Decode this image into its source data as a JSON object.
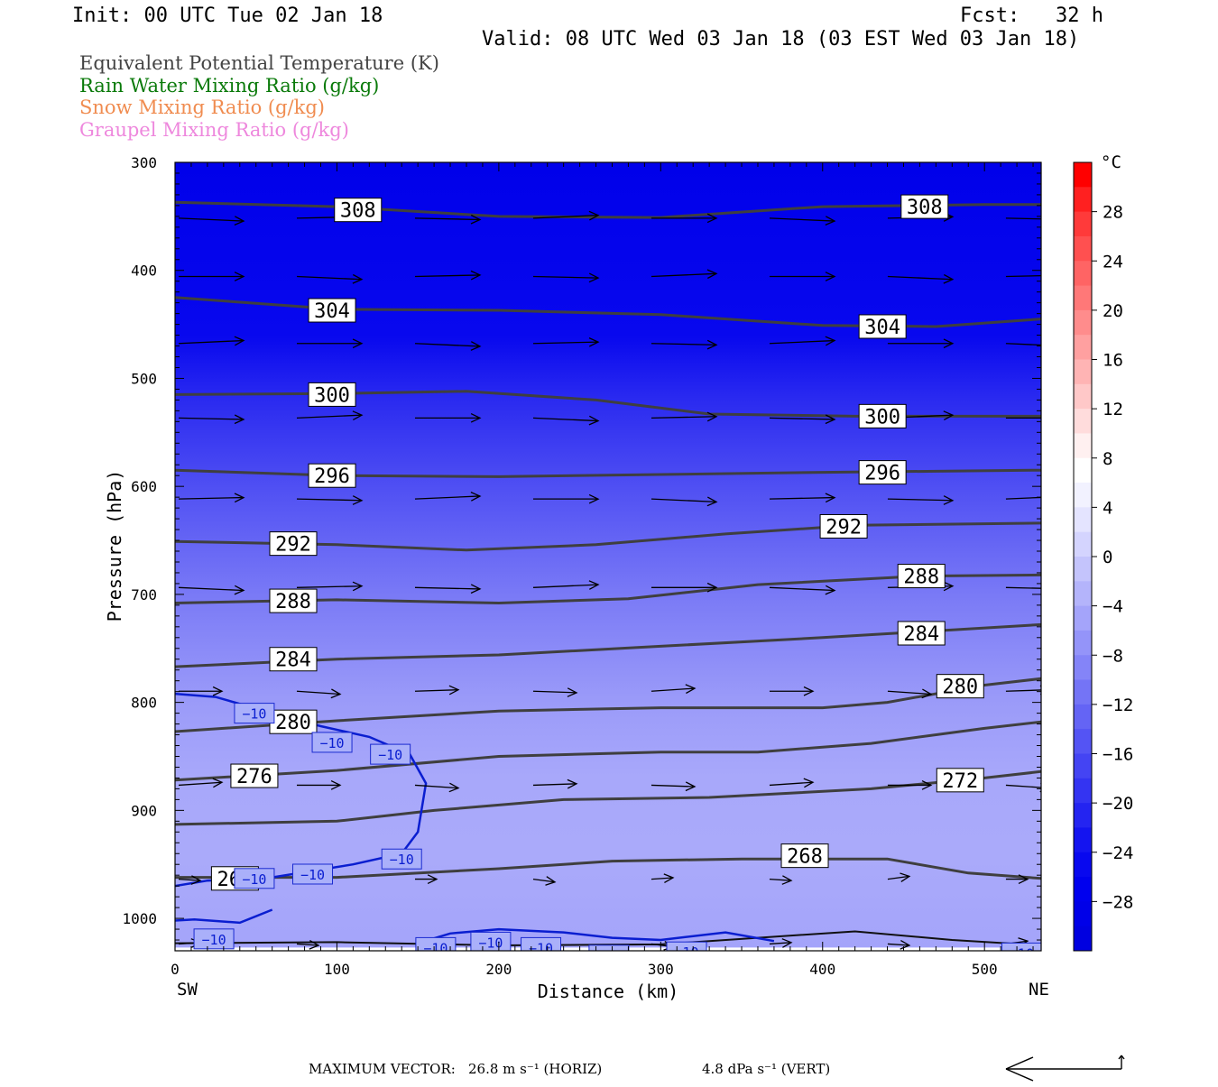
{
  "header": {
    "init": "Init: 00 UTC Tue 02 Jan 18",
    "fcst": "Fcst:   32 h",
    "valid": "Valid: 08 UTC Wed 03 Jan 18 (03 EST Wed 03 Jan 18)"
  },
  "legend": [
    {
      "label": "Equivalent Potential Temperature (K)",
      "color": "#444444"
    },
    {
      "label": "Rain Water Mixing Ratio (g/kg)",
      "color": "#0a7a0a"
    },
    {
      "label": "Snow Mixing Ratio (g/kg)",
      "color": "#f08c50"
    },
    {
      "label": "Graupel Mixing Ratio (g/kg)",
      "color": "#ee88dd"
    }
  ],
  "footer": {
    "max_vector_label": "MAXIMUM VECTOR:",
    "horiz": "26.8 m s⁻¹ (HORIZ)",
    "vert": "4.8 dPa s⁻¹ (VERT)"
  },
  "chart_data": {
    "type": "cross-section",
    "xlabel": "Distance (km)",
    "ylabel": "Pressure (hPa)",
    "xlim": [
      0,
      535
    ],
    "ylim": [
      300,
      1030
    ],
    "x_ticks": [
      0,
      100,
      200,
      300,
      400,
      500
    ],
    "y_ticks": [
      300,
      400,
      500,
      600,
      700,
      800,
      900,
      1000
    ],
    "x_end_labels": {
      "left": "SW",
      "right": "NE"
    },
    "colorbar": {
      "unit": "°C",
      "tick_labels": [
        "28",
        "24",
        "20",
        "16",
        "12",
        "8",
        "4",
        "0",
        "−4",
        "−8",
        "−12",
        "−16",
        "−20",
        "−24",
        "−28"
      ],
      "levels": [
        32,
        30,
        28,
        26,
        24,
        22,
        20,
        18,
        16,
        14,
        12,
        10,
        8,
        6,
        4,
        2,
        0,
        -2,
        -4,
        -6,
        -8,
        -10,
        -12,
        -14,
        -16,
        -18,
        -20,
        -22,
        -24,
        -26,
        -28,
        -30,
        -32
      ],
      "colors": [
        "#ff0000",
        "#ff2020",
        "#ff3a3a",
        "#ff5050",
        "#ff6464",
        "#ff7878",
        "#ff8c8c",
        "#ffa0a0",
        "#ffb4b4",
        "#ffc8c8",
        "#ffdcdc",
        "#fff0f0",
        "#ffffff",
        "#f2f2ff",
        "#e4e4ff",
        "#d4d4fe",
        "#c4c4fc",
        "#b4b4fb",
        "#a4a4fa",
        "#9494f9",
        "#8484f8",
        "#7474f6",
        "#6464f5",
        "#5454f4",
        "#4444f3",
        "#3434f2",
        "#2424f1",
        "#1414f0",
        "#0808ef",
        "#0000ee",
        "#0000e8",
        "#0000e0"
      ]
    },
    "theta_e_contours": [
      {
        "level": "308",
        "points": [
          [
            0,
            337
          ],
          [
            100,
            341
          ],
          [
            200,
            350
          ],
          [
            300,
            351
          ],
          [
            400,
            341
          ],
          [
            500,
            339
          ],
          [
            535,
            339
          ]
        ],
        "labels": [
          [
            113,
            344
          ],
          [
            463,
            341
          ]
        ]
      },
      {
        "level": "304",
        "points": [
          [
            0,
            425
          ],
          [
            100,
            436
          ],
          [
            200,
            437
          ],
          [
            300,
            441
          ],
          [
            400,
            451
          ],
          [
            470,
            452
          ],
          [
            535,
            445
          ]
        ],
        "labels": [
          [
            97,
            437
          ],
          [
            437,
            452
          ]
        ]
      },
      {
        "level": "300",
        "points": [
          [
            0,
            515
          ],
          [
            100,
            514
          ],
          [
            180,
            512
          ],
          [
            260,
            520
          ],
          [
            330,
            533
          ],
          [
            420,
            535
          ],
          [
            535,
            535
          ]
        ],
        "labels": [
          [
            97,
            515
          ],
          [
            437,
            535
          ]
        ]
      },
      {
        "level": "296",
        "points": [
          [
            0,
            585
          ],
          [
            100,
            590
          ],
          [
            200,
            591
          ],
          [
            300,
            589
          ],
          [
            400,
            587
          ],
          [
            535,
            585
          ]
        ],
        "labels": [
          [
            97,
            590
          ],
          [
            437,
            587
          ]
        ]
      },
      {
        "level": "292",
        "points": [
          [
            0,
            651
          ],
          [
            100,
            654
          ],
          [
            180,
            659
          ],
          [
            260,
            654
          ],
          [
            340,
            644
          ],
          [
            420,
            636
          ],
          [
            535,
            634
          ]
        ],
        "labels": [
          [
            73,
            653
          ],
          [
            413,
            637
          ]
        ]
      },
      {
        "level": "288",
        "points": [
          [
            0,
            708
          ],
          [
            100,
            705
          ],
          [
            200,
            708
          ],
          [
            280,
            704
          ],
          [
            360,
            691
          ],
          [
            460,
            683
          ],
          [
            535,
            682
          ]
        ],
        "labels": [
          [
            73,
            706
          ],
          [
            461,
            683
          ]
        ]
      },
      {
        "level": "284",
        "points": [
          [
            0,
            767
          ],
          [
            100,
            760
          ],
          [
            200,
            756
          ],
          [
            300,
            748
          ],
          [
            400,
            740
          ],
          [
            535,
            728
          ]
        ],
        "labels": [
          [
            73,
            760
          ],
          [
            461,
            736
          ]
        ]
      },
      {
        "level": "280",
        "points": [
          [
            0,
            827
          ],
          [
            100,
            817
          ],
          [
            200,
            808
          ],
          [
            300,
            805
          ],
          [
            400,
            805
          ],
          [
            440,
            800
          ],
          [
            500,
            784
          ],
          [
            535,
            778
          ]
        ],
        "labels": [
          [
            73,
            818
          ],
          [
            485,
            785
          ]
        ]
      },
      {
        "level": "276",
        "points": [
          [
            0,
            872
          ],
          [
            100,
            863
          ],
          [
            200,
            850
          ],
          [
            300,
            846
          ],
          [
            360,
            846
          ],
          [
            430,
            838
          ],
          [
            500,
            824
          ],
          [
            535,
            818
          ]
        ],
        "labels": [
          [
            49,
            868
          ]
        ]
      },
      {
        "level": "272",
        "points": [
          [
            0,
            913
          ],
          [
            100,
            910
          ],
          [
            160,
            900
          ],
          [
            240,
            890
          ],
          [
            330,
            888
          ],
          [
            430,
            880
          ],
          [
            500,
            870
          ],
          [
            535,
            864
          ]
        ],
        "labels": [
          [
            485,
            872
          ]
        ]
      },
      {
        "level": "268",
        "points": [
          [
            0,
            962
          ],
          [
            100,
            962
          ],
          [
            200,
            954
          ],
          [
            270,
            947
          ],
          [
            350,
            945
          ],
          [
            440,
            945
          ],
          [
            490,
            958
          ],
          [
            535,
            963
          ]
        ],
        "labels": [
          [
            37,
            963
          ],
          [
            389,
            942
          ]
        ]
      }
    ],
    "temp_contour_label": "−10",
    "temp_contour_label_positions": [
      [
        49,
        810
      ],
      [
        97,
        837
      ],
      [
        133,
        848
      ],
      [
        140,
        945
      ],
      [
        49,
        963
      ],
      [
        85,
        959
      ],
      [
        24,
        1019
      ],
      [
        161,
        1027
      ],
      [
        195,
        1022
      ],
      [
        226,
        1027
      ],
      [
        268,
        1034
      ],
      [
        316,
        1031
      ],
      [
        523,
        1032
      ]
    ]
  }
}
